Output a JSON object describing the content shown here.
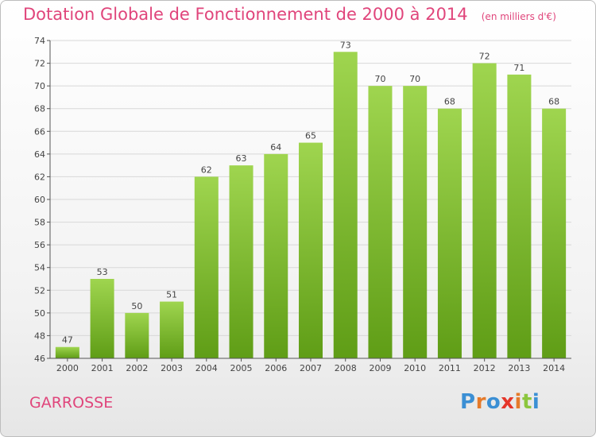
{
  "header": {
    "title": "Dotation Globale de Fonctionnement de 2000 à 2014",
    "subtitle": "(en milliers d'€)"
  },
  "commune": "GARROSSE",
  "logo": {
    "text": "Proxiti",
    "colors": [
      "#3b8fd4",
      "#e57a2a",
      "#3b8fd4",
      "#e5362a",
      "#e57a2a",
      "#8cc63e",
      "#3b8fd4"
    ]
  },
  "colors": {
    "bar_top": "#9fd54f",
    "bar_bottom": "#5f9d16",
    "grid": "#d8d8d8",
    "axis": "#555555"
  },
  "chart_data": {
    "type": "bar",
    "title": "Dotation Globale de Fonctionnement de 2000 à 2014",
    "subtitle": "(en milliers d'€)",
    "categories": [
      "2000",
      "2001",
      "2002",
      "2003",
      "2004",
      "2005",
      "2006",
      "2007",
      "2008",
      "2009",
      "2010",
      "2011",
      "2012",
      "2013",
      "2014"
    ],
    "values": [
      47,
      53,
      50,
      51,
      62,
      63,
      64,
      65,
      73,
      70,
      70,
      68,
      72,
      71,
      68
    ],
    "ylim": [
      46,
      74
    ],
    "yticks": [
      46,
      48,
      50,
      52,
      54,
      56,
      58,
      60,
      62,
      64,
      66,
      68,
      70,
      72,
      74
    ],
    "grid": true
  }
}
